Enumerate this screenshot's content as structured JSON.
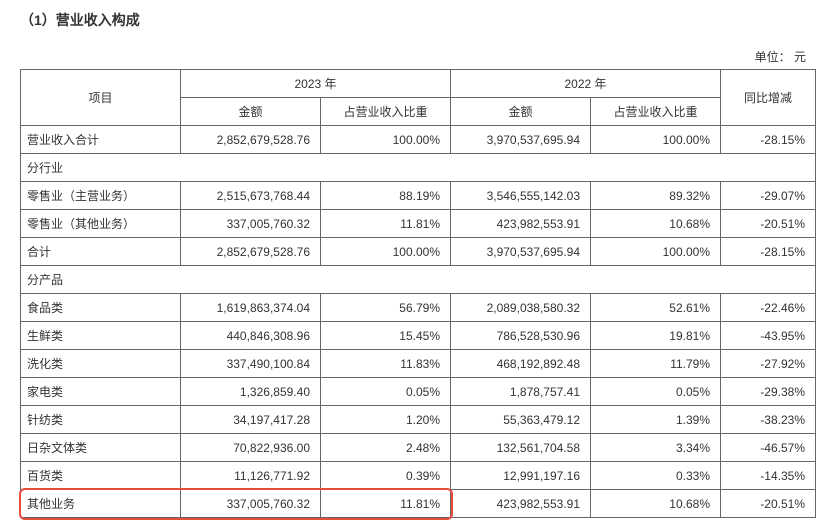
{
  "title": "（1）营业收入构成",
  "unit_label": "单位：  元",
  "headers": {
    "item": "项目",
    "year_2023": "2023 年",
    "year_2022": "2022 年",
    "amount": "金额",
    "pct": "占营业收入比重",
    "yoy": "同比增减"
  },
  "total": {
    "label": "营业收入合计",
    "amt2023": "2,852,679,528.76",
    "pct2023": "100.00%",
    "amt2022": "3,970,537,695.94",
    "pct2022": "100.00%",
    "yoy": "-28.15%"
  },
  "group_industry": "分行业",
  "industry": [
    {
      "label": "零售业（主营业务）",
      "amt2023": "2,515,673,768.44",
      "pct2023": "88.19%",
      "amt2022": "3,546,555,142.03",
      "pct2022": "89.32%",
      "yoy": "-29.07%"
    },
    {
      "label": "零售业（其他业务）",
      "amt2023": "337,005,760.32",
      "pct2023": "11.81%",
      "amt2022": "423,982,553.91",
      "pct2022": "10.68%",
      "yoy": "-20.51%"
    },
    {
      "label": "合计",
      "amt2023": "2,852,679,528.76",
      "pct2023": "100.00%",
      "amt2022": "3,970,537,695.94",
      "pct2022": "100.00%",
      "yoy": "-28.15%"
    }
  ],
  "group_product": "分产品",
  "product": [
    {
      "label": "食品类",
      "amt2023": "1,619,863,374.04",
      "pct2023": "56.79%",
      "amt2022": "2,089,038,580.32",
      "pct2022": "52.61%",
      "yoy": "-22.46%"
    },
    {
      "label": "生鲜类",
      "amt2023": "440,846,308.96",
      "pct2023": "15.45%",
      "amt2022": "786,528,530.96",
      "pct2022": "19.81%",
      "yoy": "-43.95%"
    },
    {
      "label": "洗化类",
      "amt2023": "337,490,100.84",
      "pct2023": "11.83%",
      "amt2022": "468,192,892.48",
      "pct2022": "11.79%",
      "yoy": "-27.92%"
    },
    {
      "label": "家电类",
      "amt2023": "1,326,859.40",
      "pct2023": "0.05%",
      "amt2022": "1,878,757.41",
      "pct2022": "0.05%",
      "yoy": "-29.38%"
    },
    {
      "label": "针纺类",
      "amt2023": "34,197,417.28",
      "pct2023": "1.20%",
      "amt2022": "55,363,479.12",
      "pct2022": "1.39%",
      "yoy": "-38.23%"
    },
    {
      "label": "日杂文体类",
      "amt2023": "70,822,936.00",
      "pct2023": "2.48%",
      "amt2022": "132,561,704.58",
      "pct2022": "3.34%",
      "yoy": "-46.57%"
    },
    {
      "label": "百货类",
      "amt2023": "11,126,771.92",
      "pct2023": "0.39%",
      "amt2022": "12,991,197.16",
      "pct2022": "0.33%",
      "yoy": "-14.35%"
    },
    {
      "label": "其他业务",
      "amt2023": "337,005,760.32",
      "pct2023": "11.81%",
      "amt2022": "423,982,553.91",
      "pct2022": "10.68%",
      "yoy": "-20.51%"
    }
  ],
  "highlight": {
    "color": "#e74c3c",
    "row_index": 7,
    "cols": [
      0,
      1,
      2
    ]
  }
}
